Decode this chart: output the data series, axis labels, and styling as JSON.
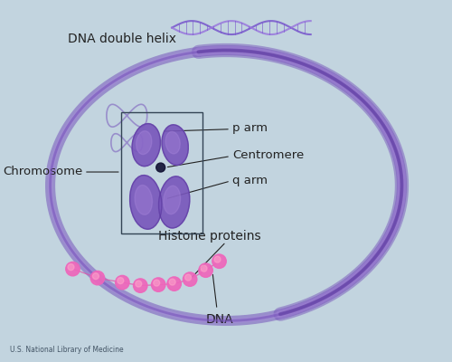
{
  "background_color": "#c2d4df",
  "labels": {
    "dna_double_helix": "DNA double helix",
    "chromosome": "Chromosome",
    "p_arm": "p arm",
    "centromere": "Centromere",
    "q_arm": "q arm",
    "histone_proteins": "Histone proteins",
    "dna": "DNA",
    "credit": "U.S. National Library of Medicine"
  },
  "colors": {
    "purple_fiber": "#7755bb",
    "purple_fiber_light": "#aa88dd",
    "purple_helix1": "#7755cc",
    "purple_helix2": "#9977dd",
    "chrom_body": "#7755bb",
    "chrom_highlight": "#aa88dd",
    "chrom_shadow": "#553399",
    "centromere_dot": "#111133",
    "pink_bead": "#ee66bb",
    "pink_bead_dark": "#cc3399",
    "pink_line": "#dd55aa",
    "box_color": "#334455",
    "text_color": "#222222",
    "line_annot": "#222222",
    "loop_color": "#7755bb"
  },
  "figsize": [
    5.0,
    4.0
  ],
  "dpi": 100,
  "xlim": [
    0,
    10
  ],
  "ylim": [
    0,
    8
  ]
}
